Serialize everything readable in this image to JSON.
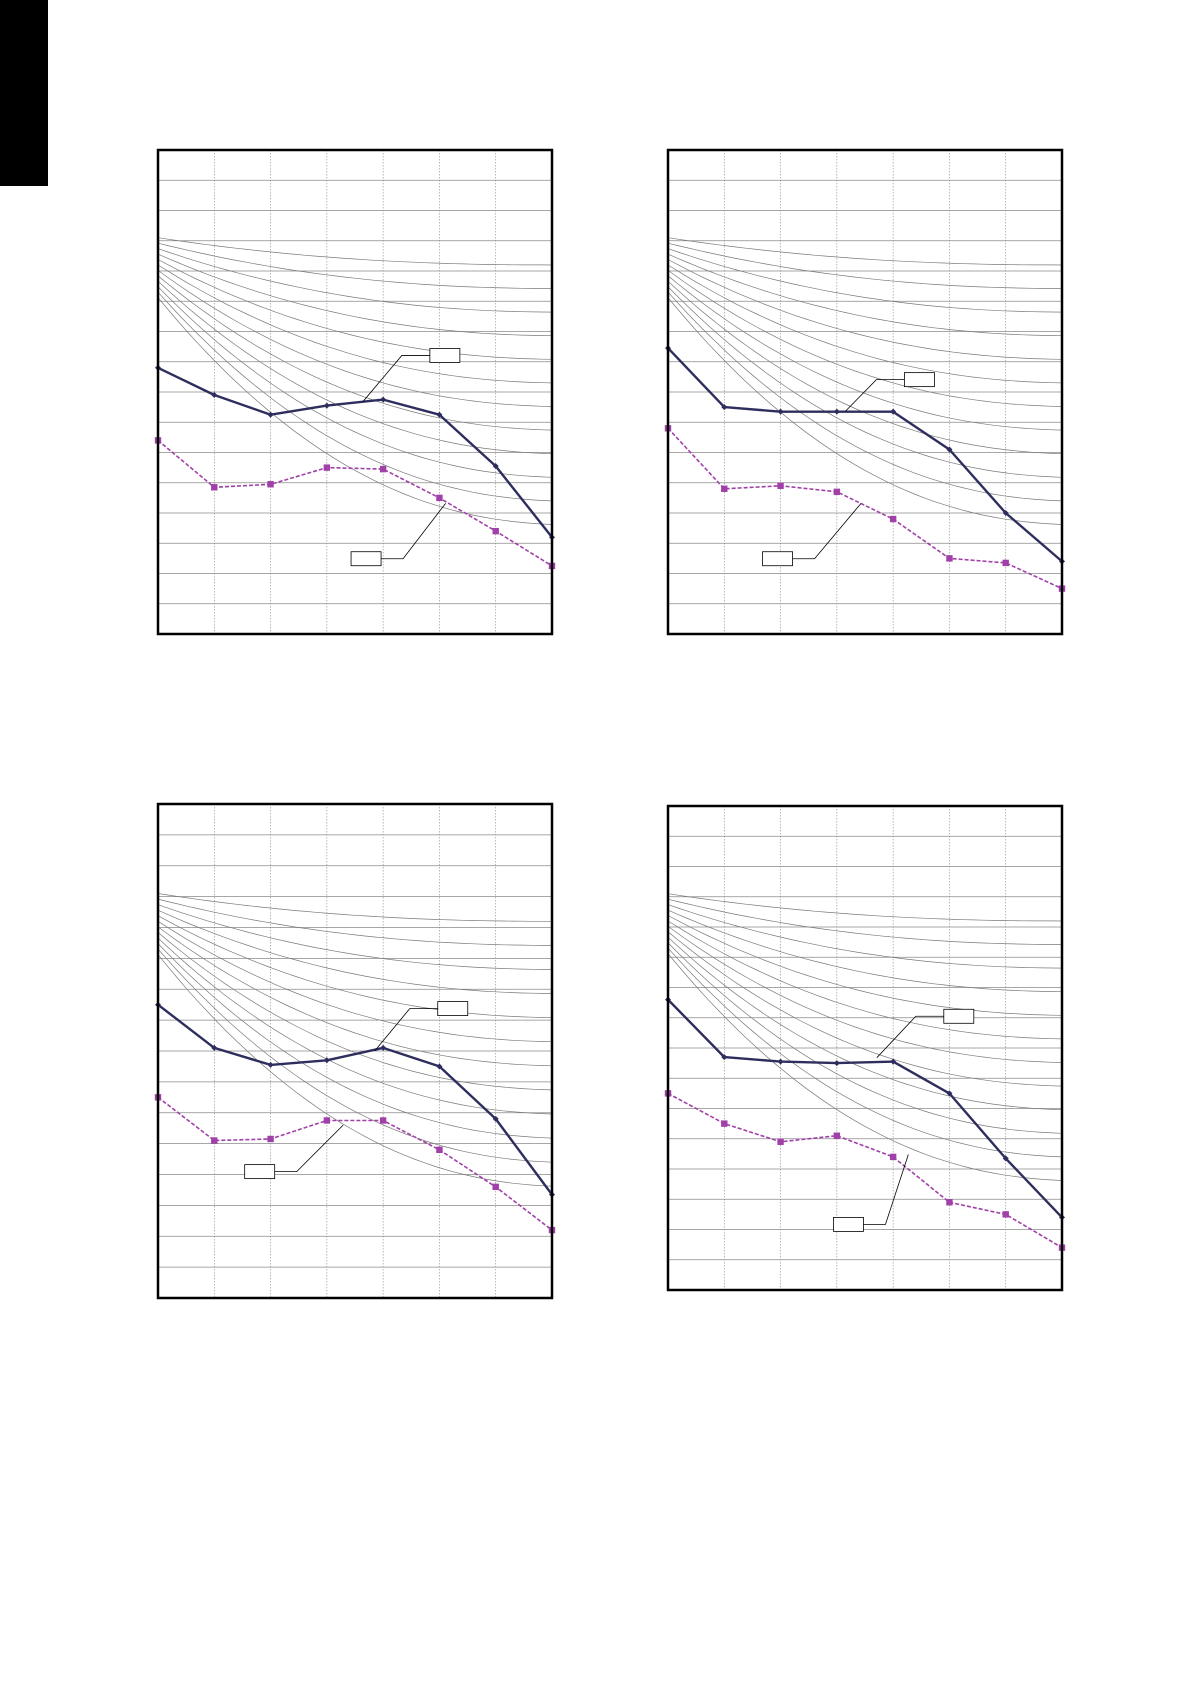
{
  "page": {
    "tab_color": "#000000"
  },
  "colors": {
    "series_solid": "#2e2e5e",
    "series_dashed": "#a040a8",
    "grid": "#8a8a8a",
    "curve": "#7a7a7a",
    "frame": "#000000"
  },
  "chart_data": [
    {
      "type": "line",
      "x": [
        0,
        1,
        2,
        3,
        4,
        5,
        6,
        7
      ],
      "ylim": [
        0,
        16
      ],
      "grid": true,
      "series": [
        {
          "style": "solid",
          "marker": "diamond",
          "values": [
            8.8,
            7.9,
            7.25,
            7.55,
            7.75,
            7.25,
            5.55,
            3.2
          ]
        },
        {
          "style": "dashed",
          "marker": "square",
          "values": [
            6.4,
            4.85,
            4.95,
            5.5,
            5.45,
            4.5,
            3.4,
            2.25
          ]
        }
      ],
      "callouts": [
        {
          "text": "",
          "points_to": "series-1"
        },
        {
          "text": "",
          "points_to": "series-2"
        }
      ]
    },
    {
      "type": "line",
      "x": [
        0,
        1,
        2,
        3,
        4,
        5,
        6,
        7
      ],
      "ylim": [
        0,
        16
      ],
      "grid": true,
      "series": [
        {
          "style": "solid",
          "marker": "diamond",
          "values": [
            9.45,
            7.5,
            7.35,
            7.35,
            7.35,
            6.1,
            4.0,
            2.4
          ]
        },
        {
          "style": "dashed",
          "marker": "square",
          "values": [
            6.8,
            4.8,
            4.9,
            4.7,
            3.8,
            2.5,
            2.35,
            1.5
          ]
        }
      ],
      "callouts": [
        {
          "text": "",
          "points_to": "series-1"
        },
        {
          "text": "",
          "points_to": "series-2"
        }
      ]
    },
    {
      "type": "line",
      "x": [
        0,
        1,
        2,
        3,
        4,
        5,
        6,
        7
      ],
      "ylim": [
        0,
        16
      ],
      "grid": true,
      "series": [
        {
          "style": "solid",
          "marker": "diamond",
          "values": [
            9.5,
            8.1,
            7.55,
            7.7,
            8.1,
            7.5,
            5.8,
            3.35
          ]
        },
        {
          "style": "dashed",
          "marker": "square",
          "values": [
            6.5,
            5.1,
            5.15,
            5.75,
            5.75,
            4.8,
            3.6,
            2.2
          ]
        }
      ],
      "callouts": [
        {
          "text": "",
          "points_to": "series-1"
        },
        {
          "text": "",
          "points_to": "series-2"
        }
      ]
    },
    {
      "type": "line",
      "x": [
        0,
        1,
        2,
        3,
        4,
        5,
        6,
        7
      ],
      "ylim": [
        0,
        16
      ],
      "grid": true,
      "series": [
        {
          "style": "solid",
          "marker": "diamond",
          "values": [
            9.6,
            7.7,
            7.55,
            7.5,
            7.55,
            6.5,
            4.35,
            2.4
          ]
        },
        {
          "style": "dashed",
          "marker": "square",
          "values": [
            6.5,
            5.5,
            4.9,
            5.1,
            4.4,
            2.9,
            2.5,
            1.4
          ]
        }
      ],
      "callouts": [
        {
          "text": "",
          "points_to": "series-1"
        },
        {
          "text": "",
          "points_to": "series-2"
        }
      ]
    }
  ]
}
